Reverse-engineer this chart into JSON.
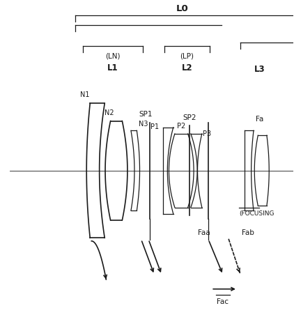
{
  "bg_color": "#ffffff",
  "line_color": "#1a1a1a",
  "figsize": [
    4.22,
    4.62
  ],
  "dpi": 100,
  "xlim": [
    0,
    10
  ],
  "ylim": [
    0,
    10
  ],
  "oa_y": 4.7
}
